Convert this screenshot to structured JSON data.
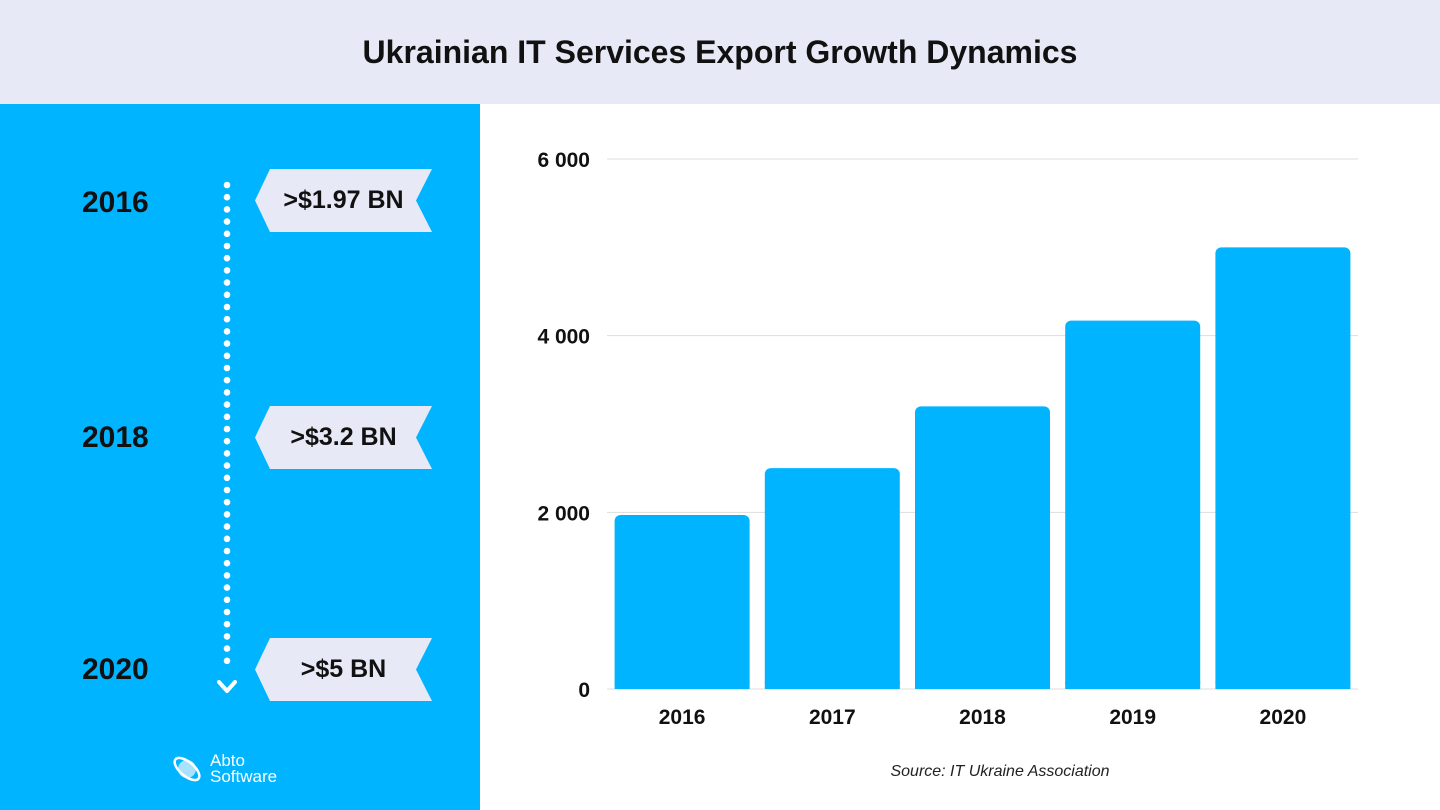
{
  "header": {
    "title": "Ukrainian IT Services Export Growth Dynamics"
  },
  "timeline": [
    {
      "year": "2016",
      "value": ">$1.97 BN"
    },
    {
      "year": "2018",
      "value": ">$3.2 BN"
    },
    {
      "year": "2020",
      "value": ">$5 BN"
    }
  ],
  "logo": {
    "line1": "Abto",
    "line2": "Software"
  },
  "source": "Source: IT Ukraine Association",
  "colors": {
    "accent": "#00b4ff",
    "header": "#e8e9f6",
    "gridline": "#dddddd"
  },
  "chart_data": {
    "type": "bar",
    "categories": [
      "2016",
      "2017",
      "2018",
      "2019",
      "2020"
    ],
    "values": [
      1970,
      2500,
      3200,
      4170,
      5000
    ],
    "ylim": [
      0,
      6000
    ],
    "yticks": [
      0,
      2000,
      4000,
      6000
    ],
    "ytick_labels": [
      "0",
      "2 000",
      "4 000",
      "6 000"
    ],
    "grid": true,
    "title": "",
    "xlabel": "",
    "ylabel": ""
  }
}
